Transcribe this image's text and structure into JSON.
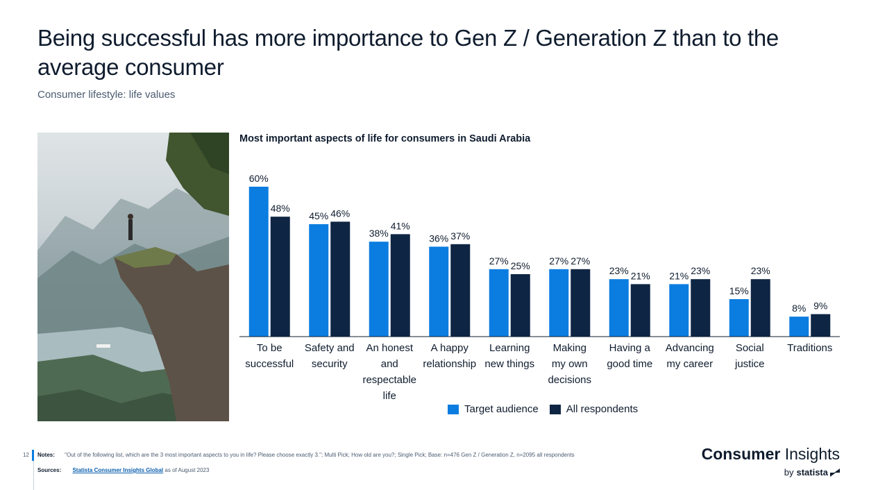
{
  "header": {
    "title": "Being successful has more importance to Gen Z / Generation Z than to the average consumer",
    "subtitle": "Consumer lifestyle: life values"
  },
  "chart_data": {
    "type": "bar",
    "title": "Most important aspects of life for consumers in Saudi Arabia",
    "categories": [
      [
        "To be",
        "successful"
      ],
      [
        "Safety and",
        "security"
      ],
      [
        "An honest",
        "and",
        "respectable",
        "life"
      ],
      [
        "A happy",
        "relationship"
      ],
      [
        "Learning",
        "new things"
      ],
      [
        "Making",
        "my own",
        "decisions"
      ],
      [
        "Having a",
        "good time"
      ],
      [
        "Advancing",
        "my career"
      ],
      [
        "Social",
        "justice"
      ],
      [
        "Traditions"
      ]
    ],
    "series": [
      {
        "name": "Target audience",
        "color": "#0b7de0",
        "values": [
          60,
          45,
          38,
          36,
          27,
          27,
          23,
          21,
          15,
          8
        ]
      },
      {
        "name": "All respondents",
        "color": "#0f2544",
        "values": [
          48,
          46,
          41,
          37,
          25,
          27,
          21,
          23,
          23,
          9
        ]
      }
    ],
    "value_suffix": "%",
    "ylim": [
      0,
      60
    ],
    "xlabel": "",
    "ylabel": "",
    "grid": false,
    "legend": "bottom"
  },
  "footer": {
    "page_number": "12",
    "notes_label": "Notes:",
    "notes_text": "\"Out of the following list, which are the 3 most important aspects to you in life? Please choose exactly 3.\"; Multi Pick; How old are you?; Single Pick; Base: n=476 Gen Z / Generation Z, n=2095 all respondents",
    "sources_label": "Sources:",
    "sources_link": "Statista Consumer Insights Global",
    "sources_suffix": "as of August 2023"
  },
  "brand": {
    "name_bold": "Consumer",
    "name_light": "Insights",
    "by": "by",
    "company": "statista"
  }
}
